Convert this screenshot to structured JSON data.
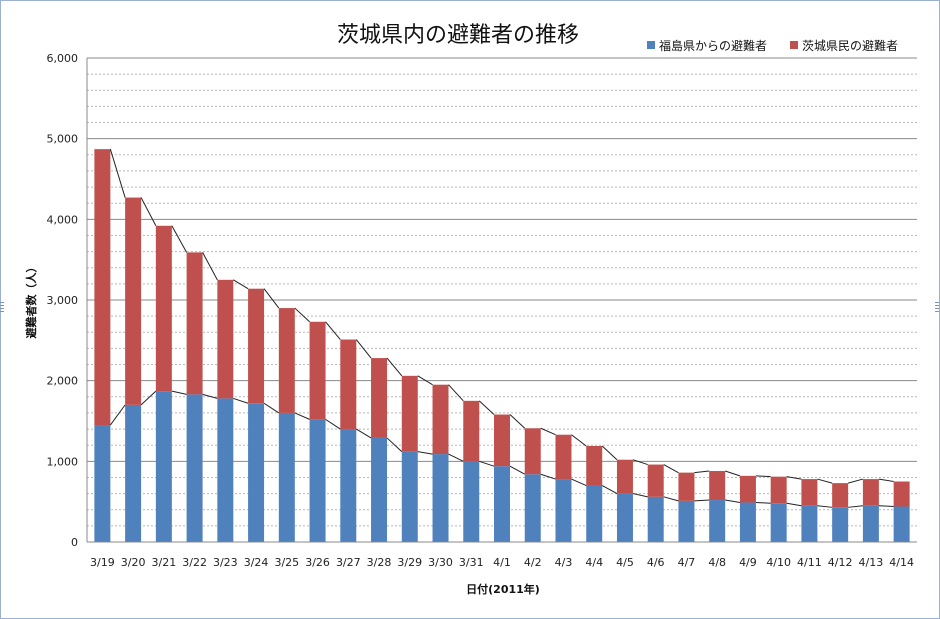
{
  "chart_data": {
    "type": "bar",
    "stacked": true,
    "title": "茨城県内の避難者の推移",
    "xlabel": "日付(2011年)",
    "ylabel": "避難者数（人）",
    "ylim": [
      0,
      6000
    ],
    "yticks": [
      "0",
      "1,000",
      "2,000",
      "3,000",
      "4,000",
      "5,000",
      "6,000"
    ],
    "grid": true,
    "legend_position": "top-right",
    "categories": [
      "3/19",
      "3/20",
      "3/21",
      "3/22",
      "3/23",
      "3/24",
      "3/25",
      "3/26",
      "3/27",
      "3/28",
      "3/29",
      "3/30",
      "3/31",
      "4/1",
      "4/2",
      "4/3",
      "4/4",
      "4/5",
      "4/6",
      "4/7",
      "4/8",
      "4/9",
      "4/10",
      "4/11",
      "4/12",
      "4/13",
      "4/14"
    ],
    "series": [
      {
        "name": "福島県からの避難者",
        "color": "#4f81bd",
        "values": [
          1450,
          1700,
          1870,
          1830,
          1780,
          1720,
          1600,
          1520,
          1400,
          1290,
          1120,
          1090,
          1000,
          940,
          840,
          780,
          700,
          600,
          560,
          510,
          520,
          490,
          480,
          450,
          430,
          450,
          440
        ]
      },
      {
        "name": "茨城県民の避難者",
        "color": "#c0504d",
        "values": [
          3420,
          2570,
          2050,
          1760,
          1470,
          1420,
          1300,
          1210,
          1110,
          990,
          940,
          860,
          750,
          640,
          570,
          550,
          490,
          420,
          400,
          350,
          360,
          330,
          330,
          330,
          300,
          330,
          310
        ]
      }
    ]
  }
}
